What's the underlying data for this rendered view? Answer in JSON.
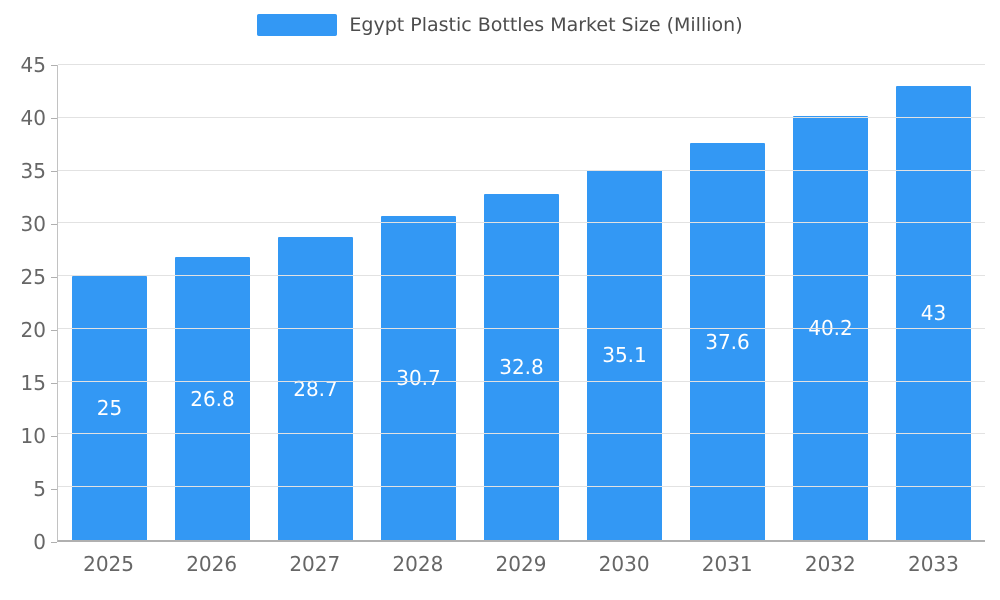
{
  "colors": {
    "bar": "#3398f4",
    "legend_text": "#4d4d4d",
    "axis_text": "#666666",
    "grid": "#e2e2e2",
    "axis_line": "#b0b0b0",
    "value_label": "#ffffff"
  },
  "legend": {
    "label": "Egypt Plastic Bottles Market Size (Million)"
  },
  "chart_data": {
    "type": "bar",
    "title": "Egypt Plastic Bottles Market Size (Million)",
    "categories": [
      "2025",
      "2026",
      "2027",
      "2028",
      "2029",
      "2030",
      "2031",
      "2032",
      "2033"
    ],
    "values": [
      25,
      26.8,
      28.7,
      30.7,
      32.8,
      35.1,
      37.6,
      40.2,
      43
    ],
    "xlabel": "",
    "ylabel": "",
    "ylim": [
      0,
      45
    ],
    "ytick_step": 5,
    "grid": "horizontal",
    "legend_position": "top",
    "value_labels": "inside-center"
  }
}
